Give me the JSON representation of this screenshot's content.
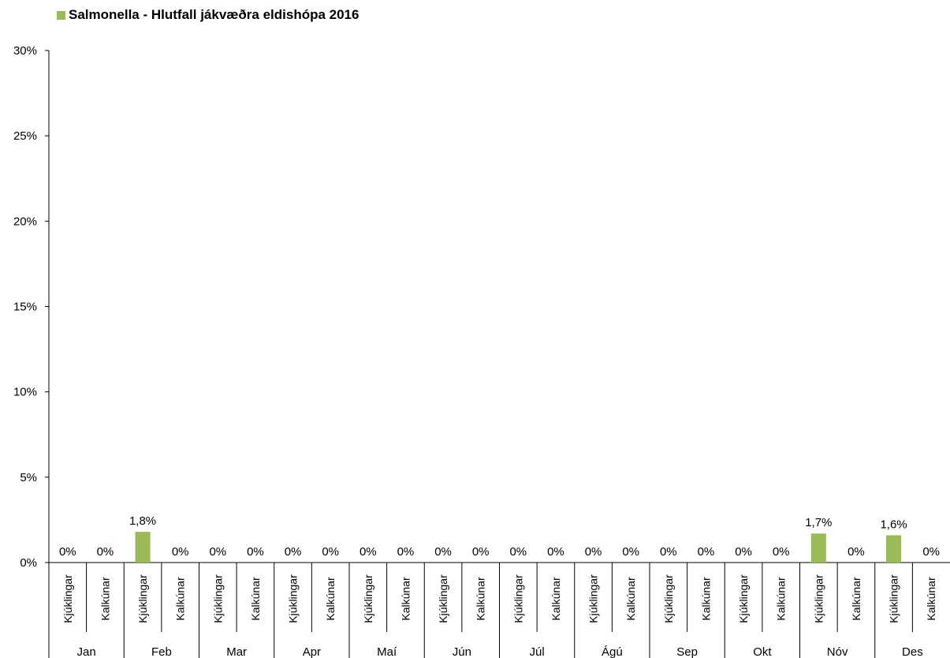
{
  "chart_data": {
    "type": "bar",
    "legend": {
      "label": "Salmonella - Hlutfall jákvæðra eldishópa 2016",
      "position": "top-left"
    },
    "y_axis": {
      "min": 0,
      "max": 30,
      "ticks": [
        "0%",
        "5%",
        "10%",
        "15%",
        "20%",
        "25%",
        "30%"
      ],
      "tick_values": [
        0,
        5,
        10,
        15,
        20,
        25,
        30
      ]
    },
    "grid": false,
    "bar_color": "#9bbb59",
    "months": [
      {
        "label": "Jan",
        "items": [
          {
            "label": "Kjúklingar",
            "value": 0,
            "value_label": "0%"
          },
          {
            "label": "Kalkúnar",
            "value": 0,
            "value_label": "0%"
          }
        ]
      },
      {
        "label": "Feb",
        "items": [
          {
            "label": "Kjúklingar",
            "value": 1.8,
            "value_label": "1,8%"
          },
          {
            "label": "Kalkúnar",
            "value": 0,
            "value_label": "0%"
          }
        ]
      },
      {
        "label": "Mar",
        "items": [
          {
            "label": "Kjúklingar",
            "value": 0,
            "value_label": "0%"
          },
          {
            "label": "Kalkúnar",
            "value": 0,
            "value_label": "0%"
          }
        ]
      },
      {
        "label": "Apr",
        "items": [
          {
            "label": "Kjúklingar",
            "value": 0,
            "value_label": "0%"
          },
          {
            "label": "Kalkúnar",
            "value": 0,
            "value_label": "0%"
          }
        ]
      },
      {
        "label": "Maí",
        "items": [
          {
            "label": "Kjúklingar",
            "value": 0,
            "value_label": "0%"
          },
          {
            "label": "Kalkúnar",
            "value": 0,
            "value_label": "0%"
          }
        ]
      },
      {
        "label": "Jún",
        "items": [
          {
            "label": "Kjúklingar",
            "value": 0,
            "value_label": "0%"
          },
          {
            "label": "Kalkúnar",
            "value": 0,
            "value_label": "0%"
          }
        ]
      },
      {
        "label": "Júl",
        "items": [
          {
            "label": "Kjúklingar",
            "value": 0,
            "value_label": "0%"
          },
          {
            "label": "Kalkúnar",
            "value": 0,
            "value_label": "0%"
          }
        ]
      },
      {
        "label": "Ágú",
        "items": [
          {
            "label": "Kjúklingar",
            "value": 0,
            "value_label": "0%"
          },
          {
            "label": "Kalkúnar",
            "value": 0,
            "value_label": "0%"
          }
        ]
      },
      {
        "label": "Sep",
        "items": [
          {
            "label": "Kjúklingar",
            "value": 0,
            "value_label": "0%"
          },
          {
            "label": "Kalkúnar",
            "value": 0,
            "value_label": "0%"
          }
        ]
      },
      {
        "label": "Okt",
        "items": [
          {
            "label": "Kjúklingar",
            "value": 0,
            "value_label": "0%"
          },
          {
            "label": "Kalkúnar",
            "value": 0,
            "value_label": "0%"
          }
        ]
      },
      {
        "label": "Nóv",
        "items": [
          {
            "label": "Kjúklingar",
            "value": 1.7,
            "value_label": "1,7%"
          },
          {
            "label": "Kalkúnar",
            "value": 0,
            "value_label": "0%"
          }
        ]
      },
      {
        "label": "Des",
        "items": [
          {
            "label": "Kjúklingar",
            "value": 1.6,
            "value_label": "1,6%"
          },
          {
            "label": "Kalkúnar",
            "value": 0,
            "value_label": "0%"
          }
        ]
      }
    ]
  }
}
